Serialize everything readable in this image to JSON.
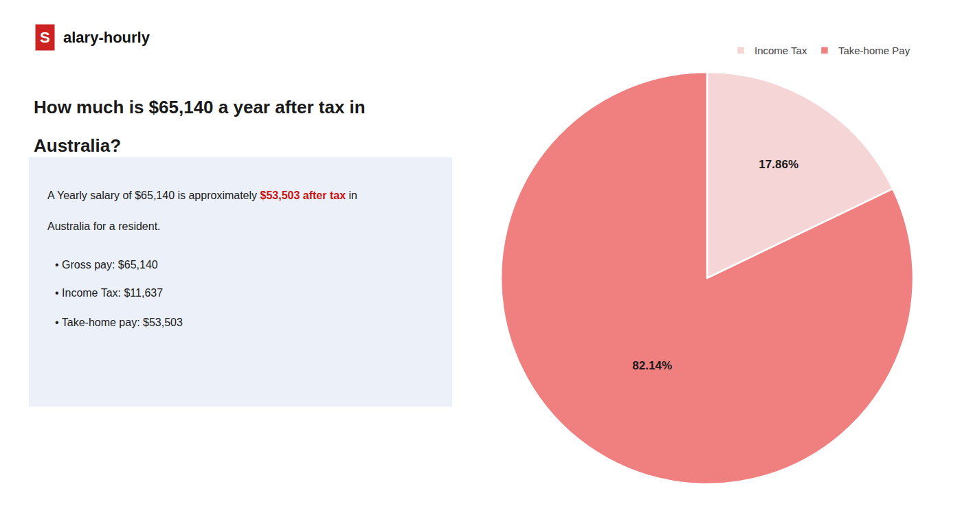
{
  "chart_data": {
    "type": "pie",
    "title": [
      "How much is $65,140 a year after tax in",
      "Australia?"
    ],
    "annotations": [
      {
        "text": "S",
        "color": "#cc2222"
      },
      {
        "text": "alary-hourly"
      },
      {
        "segments": [
          {
            "text": "A Yearly salary of $65,140 is approximately "
          },
          {
            "text": "$53,503 after tax",
            "color": "#cc1111"
          },
          {
            "text": " in"
          }
        ]
      },
      {
        "text": "Australia for a resident."
      },
      {
        "text": "• Gross pay: $65,140"
      },
      {
        "text": "• Income Tax: $11,637"
      },
      {
        "text": "• Take-home pay: $53,503"
      }
    ],
    "categories": [
      "Income Tax",
      "Take-home Pay"
    ],
    "values": [
      17.86,
      82.14
    ],
    "value_labels": [
      "17.86%",
      "82.14%"
    ],
    "colors": [
      "#f5d5d5",
      "#f08080"
    ],
    "data_labels": true,
    "legend": "upper right"
  }
}
